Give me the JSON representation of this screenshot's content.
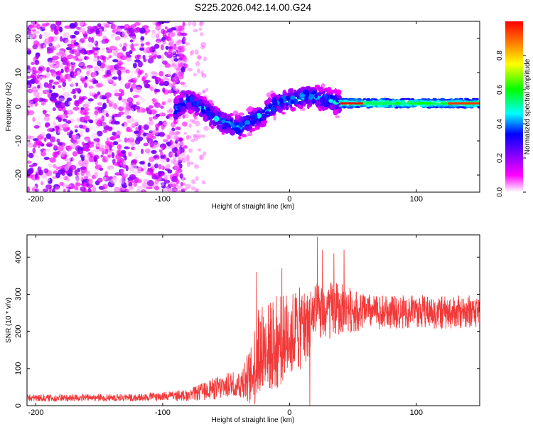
{
  "title": "S225.2026.042.14.00.G24",
  "chart_data": [
    {
      "type": "heatmap",
      "name": "spectrogram",
      "xlabel": "Height of straight line (km)",
      "ylabel": "Frequency (Hz)",
      "xlim": [
        -207,
        150
      ],
      "ylim": [
        -25,
        25
      ],
      "xticks": [
        -200,
        -100,
        0,
        100
      ],
      "yticks": [
        -20,
        -10,
        0,
        10,
        20
      ],
      "colorbar": {
        "label": "Normalized spectral amplitude",
        "range": [
          0,
          1
        ],
        "ticks": [
          "0.0",
          "0.2",
          "0.4",
          "0.6",
          "0.8"
        ],
        "colors": [
          "#ffffff",
          "#ff00ff",
          "#8000ff",
          "#0000ff",
          "#00ffff",
          "#00ff00",
          "#ffff00",
          "#ff8000",
          "#ff0000"
        ]
      },
      "regions": [
        {
          "x": [
            -207,
            -90
          ],
          "description": "noise",
          "amplitude_range": [
            0.0,
            0.25
          ]
        },
        {
          "x": [
            -90,
            40
          ],
          "description": "wandering signal",
          "freq_range": [
            -8,
            5
          ],
          "amplitude_range": [
            0.1,
            0.5
          ]
        },
        {
          "x": [
            40,
            150
          ],
          "description": "steady carrier",
          "freq_range": [
            0,
            2
          ],
          "amplitude_range": [
            0.3,
            1.0
          ]
        }
      ],
      "ridge": {
        "x": [
          -90,
          -80,
          -70,
          -60,
          -50,
          -40,
          -30,
          -20,
          -10,
          0,
          10,
          20,
          30,
          40,
          60,
          80,
          100,
          120,
          150
        ],
        "freq": [
          -1,
          2,
          0,
          -3,
          -5,
          -6,
          -4,
          -2,
          1,
          2,
          3,
          3,
          2,
          1,
          1,
          1,
          1,
          1,
          1
        ]
      }
    },
    {
      "type": "line",
      "name": "snr",
      "xlabel": "Height of straight line (km)",
      "ylabel": "SNR (10 * v/v)",
      "xlim": [
        -207,
        150
      ],
      "ylim": [
        0,
        460
      ],
      "xticks": [
        -200,
        -100,
        0,
        100
      ],
      "yticks": [
        0,
        100,
        200,
        300,
        400
      ],
      "color": "#f23a3a",
      "series": [
        {
          "name": "SNR",
          "envelope": {
            "x": [
              -207,
              -120,
              -80,
              -60,
              -40,
              -30,
              -25,
              -20,
              -10,
              0,
              10,
              20,
              30,
              40,
              60,
              80,
              100,
              120,
              150
            ],
            "mean": [
              20,
              22,
              28,
              45,
              60,
              80,
              140,
              150,
              170,
              190,
              210,
              240,
              255,
              260,
              255,
              250,
              255,
              250,
              255
            ],
            "amplitude": [
              10,
              10,
              15,
              30,
              40,
              80,
              150,
              120,
              130,
              120,
              110,
              90,
              80,
              70,
              50,
              45,
              45,
              45,
              45
            ]
          },
          "spikes": [
            {
              "x": -26,
              "y": 360
            },
            {
              "x": -6,
              "y": 370
            },
            {
              "x": 22,
              "y": 455
            },
            {
              "x": 26,
              "y": 420
            },
            {
              "x": 35,
              "y": 410
            },
            {
              "x": 43,
              "y": 420
            },
            {
              "x": 16,
              "y": 0
            }
          ]
        }
      ]
    }
  ]
}
